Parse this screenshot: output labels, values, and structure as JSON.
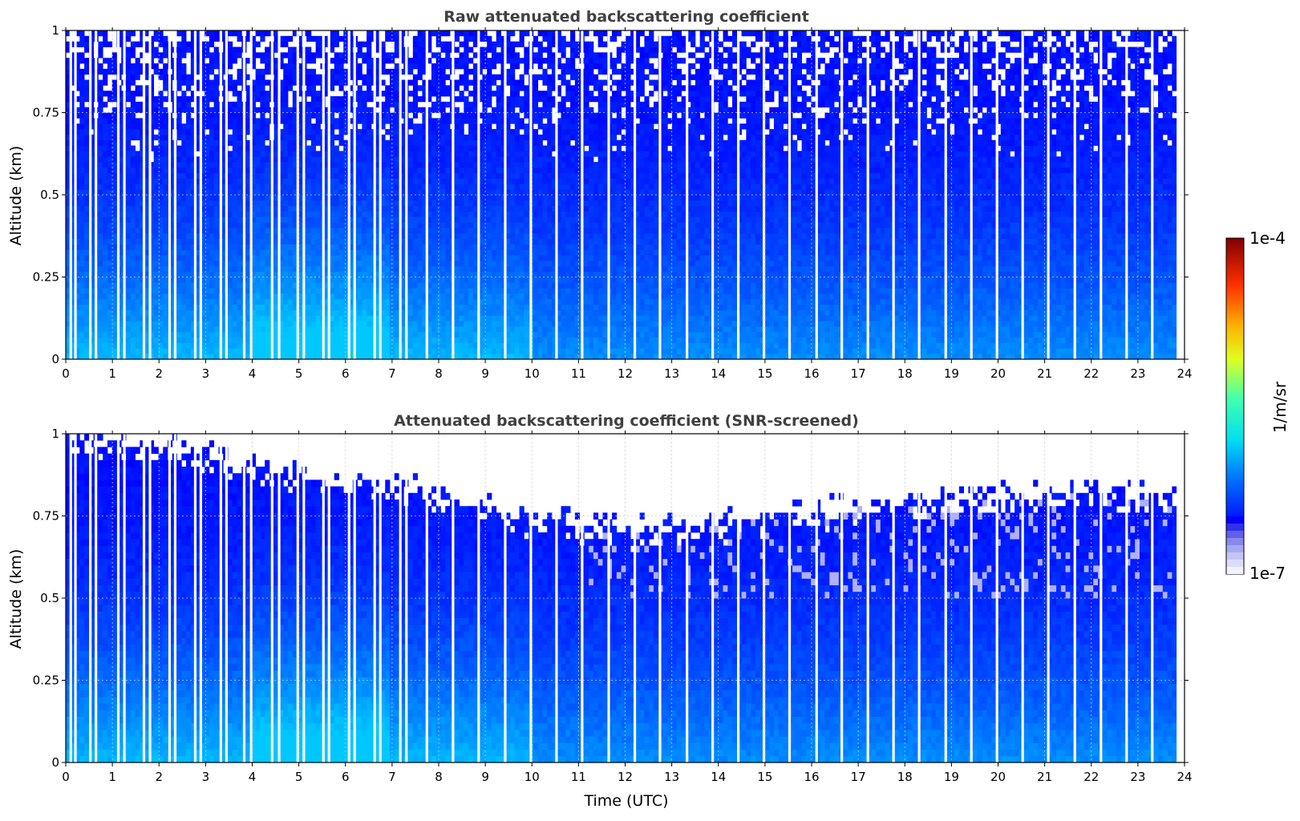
{
  "figure": {
    "xlabel": "Time (UTC)",
    "colorbar": {
      "label": "1/m/sr",
      "min_label": "1e-7",
      "max_label": "1e-4",
      "range": [
        1e-07,
        0.0001
      ],
      "scale": "log",
      "colormap": "jet"
    }
  },
  "chart_data": [
    {
      "type": "heatmap",
      "title": "Raw attenuated backscattering coefficient",
      "xlabel": "",
      "ylabel": "Altitude (km)",
      "xlim": [
        0,
        24
      ],
      "ylim": [
        0,
        1
      ],
      "x_ticks": [
        "0",
        "1",
        "2",
        "3",
        "4",
        "5",
        "6",
        "7",
        "8",
        "9",
        "10",
        "11",
        "12",
        "13",
        "14",
        "15",
        "16",
        "17",
        "18",
        "19",
        "20",
        "21",
        "22",
        "23",
        "24"
      ],
      "y_ticks": [
        "0",
        "0.25",
        "0.5",
        "0.75",
        "1"
      ],
      "grid": true,
      "screened": false,
      "data_gaps_utc": [
        0.08,
        0.18,
        0.5,
        0.62,
        1.1,
        1.23,
        1.65,
        1.78,
        2.2,
        2.32,
        2.75,
        2.87,
        3.3,
        3.42,
        3.8,
        3.95,
        4.4,
        4.55,
        4.95,
        5.08,
        5.5,
        5.62,
        6.05,
        6.17,
        6.6,
        6.72,
        7.15,
        7.28,
        7.72,
        8.28,
        8.83,
        9.4,
        9.95,
        10.5,
        11.05,
        11.62,
        12.18,
        12.72,
        13.3,
        13.85,
        14.4,
        14.95,
        15.5,
        16.08,
        16.62,
        17.18,
        17.73,
        18.28,
        18.85,
        19.4,
        19.95,
        20.5,
        21.05,
        21.62,
        22.18,
        22.73,
        23.28
      ],
      "data_end_utc": 23.83,
      "colorbar_label": "1/m/sr"
    },
    {
      "type": "heatmap",
      "title": "Attenuated backscattering coefficient (SNR-screened)",
      "xlabel": "Time (UTC)",
      "ylabel": "Altitude (km)",
      "xlim": [
        0,
        24
      ],
      "ylim": [
        0,
        1
      ],
      "x_ticks": [
        "0",
        "1",
        "2",
        "3",
        "4",
        "5",
        "6",
        "7",
        "8",
        "9",
        "10",
        "11",
        "12",
        "13",
        "14",
        "15",
        "16",
        "17",
        "18",
        "19",
        "20",
        "21",
        "22",
        "23",
        "24"
      ],
      "y_ticks": [
        "0",
        "0.25",
        "0.5",
        "0.75",
        "1"
      ],
      "grid": true,
      "screened": true,
      "screened_top_km": [
        [
          0,
          1.0
        ],
        [
          2,
          0.95
        ],
        [
          4,
          0.9
        ],
        [
          6,
          0.86
        ],
        [
          8,
          0.8
        ],
        [
          10,
          0.74
        ],
        [
          12,
          0.7
        ],
        [
          14,
          0.72
        ],
        [
          16,
          0.76
        ],
        [
          18,
          0.78
        ],
        [
          20,
          0.8
        ],
        [
          22,
          0.82
        ],
        [
          23.8,
          0.8
        ]
      ],
      "colorbar_label": "1/m/sr"
    }
  ]
}
